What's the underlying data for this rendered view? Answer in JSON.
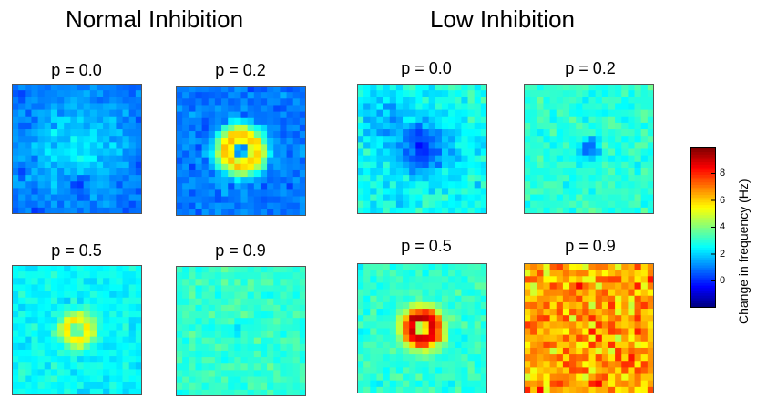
{
  "chart_data": {
    "type": "heatmap",
    "grid_size": 20,
    "value_range": [
      -2,
      10
    ],
    "colormap": "jet",
    "groups": [
      {
        "title": "Normal Inhibition",
        "panels": [
          {
            "title": "p = 0.0",
            "base": 0.6,
            "noise": 0.5,
            "ring_amp": 1.6,
            "ring_r": 0.0,
            "ring_w": 0.6,
            "dip_amp": 0.0,
            "dip_w": 0.1,
            "dip_dy": 0.0,
            "dip2_amp": -1.4,
            "dip2_dx": 0.0,
            "dip2_dy": 0.55,
            "dip2_w": 0.12
          },
          {
            "title": "p = 0.2",
            "base": 0.9,
            "noise": 0.5,
            "ring_amp": 5.4,
            "ring_r": 0.22,
            "ring_w": 0.14,
            "dip_amp": -3.5,
            "dip_w": 0.08,
            "dip_dy": 0.0,
            "dip2_amp": 0.0,
            "dip2_dx": 0.0,
            "dip2_dy": 0.0,
            "dip2_w": 0.1
          }
        ]
      },
      {
        "title": "Low Inhibition",
        "panels": [
          {
            "title": "p = 0.0",
            "base": 2.6,
            "noise": 0.7,
            "ring_amp": -2.6,
            "ring_r": 0.0,
            "ring_w": 0.28,
            "dip_amp": 0.0,
            "dip_w": 0.1,
            "dip_dy": 0.0,
            "dip2_amp": -1.2,
            "dip2_dx": -0.6,
            "dip2_dy": -0.5,
            "dip2_w": 0.25
          },
          {
            "title": "p = 0.2",
            "base": 3.0,
            "noise": 0.55,
            "ring_amp": -2.4,
            "ring_r": 0.0,
            "ring_w": 0.12,
            "dip_amp": 0.0,
            "dip_w": 0.1,
            "dip_dy": 0.0,
            "dip2_amp": 0.0,
            "dip2_dx": 0.0,
            "dip2_dy": 0.0,
            "dip2_w": 0.1
          }
        ]
      },
      {
        "title": "",
        "panels": [
          {
            "title": "p = 0.5",
            "base": 2.5,
            "noise": 0.5,
            "ring_amp": 3.4,
            "ring_r": 0.12,
            "ring_w": 0.12,
            "dip_amp": -3.8,
            "dip_w": 0.06,
            "dip_dy": 0.0,
            "dip2_amp": 0.0,
            "dip2_dx": 0.0,
            "dip2_dy": 0.0,
            "dip2_w": 0.1
          },
          {
            "title": "p = 0.9",
            "base": 3.1,
            "noise": 0.5,
            "ring_amp": 0.0,
            "ring_r": 0.0,
            "ring_w": 0.1,
            "dip_amp": -1.0,
            "dip_w": 0.05,
            "dip_dy": 0.0,
            "dip2_amp": 0.0,
            "dip2_dx": 0.0,
            "dip2_dy": 0.0,
            "dip2_w": 0.1
          }
        ]
      },
      {
        "title": "",
        "panels": [
          {
            "title": "p = 0.5",
            "base": 3.0,
            "noise": 0.55,
            "ring_amp": 6.2,
            "ring_r": 0.16,
            "ring_w": 0.12,
            "dip_amp": -5.0,
            "dip_w": 0.06,
            "dip_dy": 0.0,
            "dip2_amp": 0.0,
            "dip2_dx": 0.0,
            "dip2_dy": 0.0,
            "dip2_w": 0.1
          },
          {
            "title": "p = 0.9",
            "base": 6.6,
            "noise": 1.4,
            "ring_amp": 0.0,
            "ring_r": 0.0,
            "ring_w": 0.1,
            "dip_amp": 0.0,
            "dip_w": 0.1,
            "dip_dy": 0.0,
            "dip2_amp": 0.0,
            "dip2_dx": 0.0,
            "dip2_dy": 0.0,
            "dip2_w": 0.1
          }
        ]
      }
    ],
    "colorbar": {
      "label": "Change in frequency (Hz)",
      "ticks": [
        0,
        2,
        4,
        6,
        8
      ],
      "tick_labels": [
        "0",
        "2",
        "4",
        "6",
        "8"
      ]
    }
  }
}
